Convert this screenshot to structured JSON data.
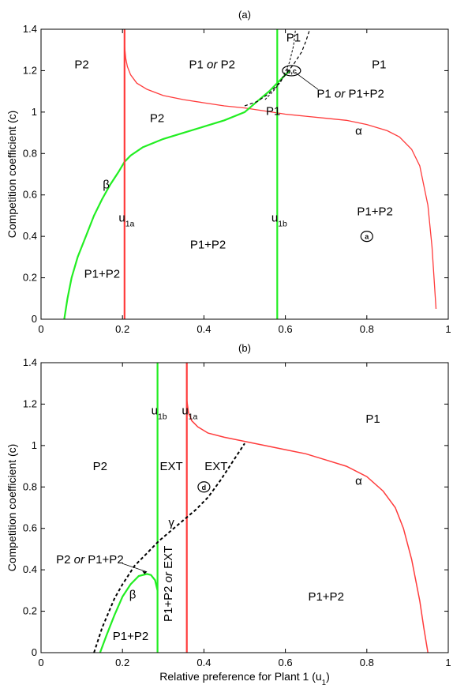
{
  "chart_data": [
    {
      "type": "line",
      "title": "(a)",
      "xlabel": "",
      "ylabel": "Competition coefficient (c)",
      "xlim": [
        0,
        1
      ],
      "ylim": [
        0,
        1.4
      ],
      "xticks": [
        "0",
        "0.2",
        "0.4",
        "0.6",
        "0.8",
        "1"
      ],
      "yticks": [
        "0",
        "0.2",
        "0.4",
        "0.6",
        "0.8",
        "1",
        "1.2",
        "1.4"
      ],
      "curves": [
        {
          "label": "α",
          "color": "#ff3b3b",
          "width": 1.3,
          "dash": "",
          "x": [
            0.205,
            0.208,
            0.212,
            0.22,
            0.235,
            0.26,
            0.3,
            0.35,
            0.4,
            0.45,
            0.5,
            0.55,
            0.6,
            0.65,
            0.7,
            0.75,
            0.8,
            0.85,
            0.88,
            0.91,
            0.93,
            0.95,
            0.96,
            0.97
          ],
          "y": [
            1.32,
            1.26,
            1.22,
            1.18,
            1.14,
            1.11,
            1.08,
            1.06,
            1.045,
            1.03,
            1.02,
            1.005,
            0.99,
            0.98,
            0.97,
            0.96,
            0.94,
            0.91,
            0.88,
            0.82,
            0.74,
            0.55,
            0.35,
            0.05
          ]
        },
        {
          "label": "β",
          "color": "#22ee22",
          "width": 2.2,
          "dash": "",
          "x": [
            0.057,
            0.065,
            0.075,
            0.09,
            0.11,
            0.13,
            0.15,
            0.17,
            0.19,
            0.205,
            0.22,
            0.25,
            0.3,
            0.35,
            0.4,
            0.45,
            0.5,
            0.53,
            0.56,
            0.58,
            0.6,
            0.61
          ],
          "y": [
            0.0,
            0.1,
            0.2,
            0.3,
            0.4,
            0.5,
            0.58,
            0.65,
            0.71,
            0.76,
            0.79,
            0.83,
            0.87,
            0.9,
            0.93,
            0.96,
            1.0,
            1.05,
            1.1,
            1.14,
            1.18,
            1.2
          ]
        },
        {
          "label": "",
          "color": "#ff3b3b",
          "width": 2.2,
          "dash": "",
          "x": [
            0.205,
            0.205
          ],
          "y": [
            0,
            1.4
          ]
        },
        {
          "label": "",
          "color": "#22ee22",
          "width": 2.2,
          "dash": "",
          "x": [
            0.58,
            0.58
          ],
          "y": [
            0,
            1.4
          ]
        },
        {
          "label": "",
          "color": "#000000",
          "width": 1.2,
          "dash": "4,3",
          "x": [
            0.5,
            0.53,
            0.56,
            0.58,
            0.6,
            0.62,
            0.64,
            0.65,
            0.66
          ],
          "y": [
            1.03,
            1.05,
            1.09,
            1.13,
            1.18,
            1.23,
            1.29,
            1.34,
            1.4
          ]
        },
        {
          "label": "",
          "color": "#000000",
          "width": 1.0,
          "dash": "3,2",
          "x": [
            0.55,
            0.57,
            0.59,
            0.61,
            0.62,
            0.625
          ],
          "y": [
            1.06,
            1.1,
            1.15,
            1.24,
            1.32,
            1.4
          ]
        }
      ],
      "region_labels": [
        {
          "text": "P2",
          "x": 0.1,
          "y": 1.23
        },
        {
          "text": "P1 or P2",
          "x": 0.42,
          "y": 1.23
        },
        {
          "text": "P1",
          "x": 0.83,
          "y": 1.23
        },
        {
          "text": "P1",
          "x": 0.62,
          "y": 1.36
        },
        {
          "text": "P2",
          "x": 0.285,
          "y": 0.97
        },
        {
          "text": "P1",
          "x": 0.57,
          "y": 1.005
        },
        {
          "text": "P1+P2",
          "x": 0.82,
          "y": 0.52
        },
        {
          "text": "P1+P2",
          "x": 0.41,
          "y": 0.36
        },
        {
          "text": "P1+P2",
          "x": 0.15,
          "y": 0.22
        },
        {
          "text": "u1a",
          "x": 0.21,
          "y": 0.49
        },
        {
          "text": "u1b",
          "x": 0.585,
          "y": 0.49
        },
        {
          "text": "α",
          "x": 0.78,
          "y": 0.91
        },
        {
          "text": "β",
          "x": 0.16,
          "y": 0.65
        },
        {
          "text": "P1 or P1+P2",
          "x": 0.76,
          "y": 1.09
        }
      ],
      "markers": [
        {
          "text": "b,c",
          "x": 0.615,
          "y": 1.2
        },
        {
          "text": "a",
          "x": 0.8,
          "y": 0.4
        }
      ]
    },
    {
      "type": "line",
      "title": "(b)",
      "xlabel": "Relative preference for Plant 1 (u1)",
      "ylabel": "Competition coefficient (c)",
      "xlim": [
        0,
        1
      ],
      "ylim": [
        0,
        1.4
      ],
      "xticks": [
        "0",
        "0.2",
        "0.4",
        "0.6",
        "0.8",
        "1"
      ],
      "yticks": [
        "0",
        "0.2",
        "0.4",
        "0.6",
        "0.8",
        "1",
        "1.2",
        "1.4"
      ],
      "curves": [
        {
          "label": "α",
          "color": "#ff3b3b",
          "width": 1.5,
          "dash": "",
          "x": [
            0.358,
            0.362,
            0.37,
            0.385,
            0.41,
            0.45,
            0.5,
            0.55,
            0.6,
            0.65,
            0.7,
            0.75,
            0.8,
            0.84,
            0.87,
            0.89,
            0.91,
            0.93,
            0.94,
            0.95
          ],
          "y": [
            1.22,
            1.16,
            1.12,
            1.09,
            1.06,
            1.04,
            1.02,
            1.0,
            0.98,
            0.96,
            0.93,
            0.9,
            0.85,
            0.78,
            0.7,
            0.6,
            0.45,
            0.25,
            0.12,
            0.0
          ]
        },
        {
          "label": "β",
          "color": "#22ee22",
          "width": 2.2,
          "dash": "",
          "x": [
            0.145,
            0.16,
            0.18,
            0.2,
            0.22,
            0.24,
            0.26,
            0.27,
            0.28,
            0.286
          ],
          "y": [
            0.0,
            0.08,
            0.18,
            0.27,
            0.33,
            0.37,
            0.38,
            0.375,
            0.35,
            0.3
          ]
        },
        {
          "label": "",
          "color": "#22ee22",
          "width": 2.2,
          "dash": "",
          "x": [
            0.286,
            0.286
          ],
          "y": [
            0,
            1.4
          ]
        },
        {
          "label": "",
          "color": "#ff3b3b",
          "width": 2.2,
          "dash": "",
          "x": [
            0.358,
            0.358
          ],
          "y": [
            0,
            1.4
          ]
        },
        {
          "label": "γ",
          "color": "#000000",
          "width": 2.0,
          "dash": "4,3",
          "x": [
            0.13,
            0.15,
            0.18,
            0.2,
            0.23,
            0.26,
            0.29,
            0.32,
            0.35,
            0.38,
            0.41,
            0.44,
            0.47,
            0.5
          ],
          "y": [
            0.0,
            0.12,
            0.26,
            0.33,
            0.42,
            0.48,
            0.54,
            0.59,
            0.64,
            0.69,
            0.75,
            0.83,
            0.92,
            1.01
          ]
        }
      ],
      "region_labels": [
        {
          "text": "P1",
          "x": 0.815,
          "y": 1.13
        },
        {
          "text": "P2",
          "x": 0.145,
          "y": 0.9
        },
        {
          "text": "EXT",
          "x": 0.32,
          "y": 0.9
        },
        {
          "text": "EXT",
          "x": 0.43,
          "y": 0.9
        },
        {
          "text": "P1+P2",
          "x": 0.7,
          "y": 0.27
        },
        {
          "text": "P1+P2",
          "x": 0.22,
          "y": 0.08
        },
        {
          "text": "u1b",
          "x": 0.29,
          "y": 1.17
        },
        {
          "text": "u1a",
          "x": 0.365,
          "y": 1.17
        },
        {
          "text": "α",
          "x": 0.78,
          "y": 0.83
        },
        {
          "text": "β",
          "x": 0.225,
          "y": 0.28
        },
        {
          "text": "γ",
          "x": 0.32,
          "y": 0.63
        },
        {
          "text": "P2 or P1+P2",
          "x": 0.12,
          "y": 0.45
        }
      ],
      "rotated_label": {
        "text": "P1+P2 or EXT",
        "x": 0.322,
        "y": 0.18
      },
      "markers": [
        {
          "text": "d",
          "x": 0.4,
          "y": 0.8
        }
      ]
    }
  ]
}
